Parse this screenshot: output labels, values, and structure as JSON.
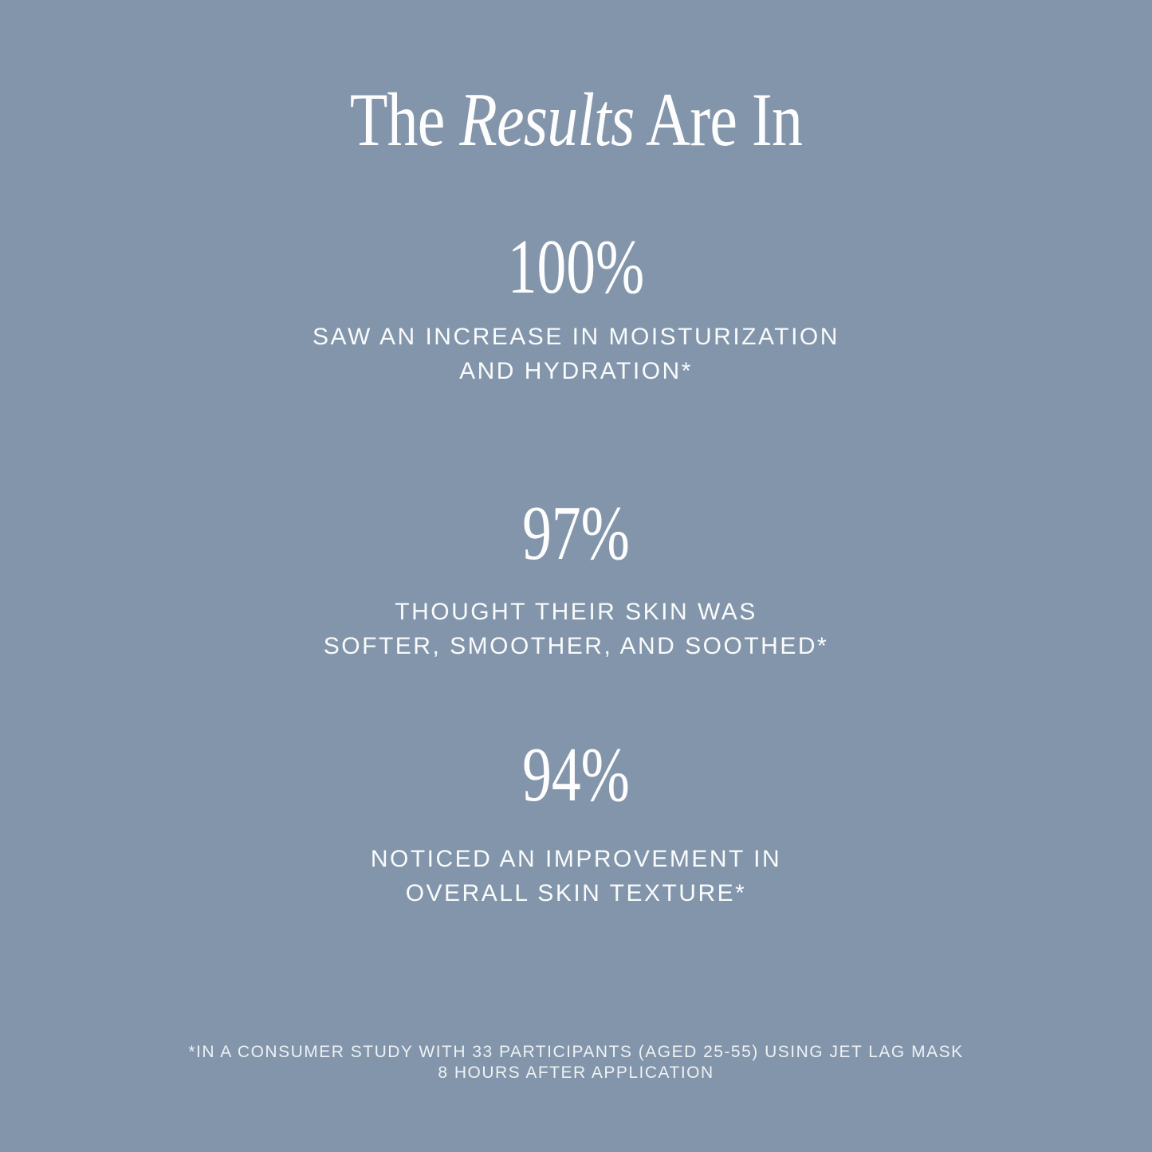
{
  "theme": {
    "background_color": "#8295aa",
    "text_color": "#fdfdfe"
  },
  "title": {
    "prefix": "The ",
    "emphasis": "Results",
    "suffix": " Are In"
  },
  "stats": [
    {
      "value": "100%",
      "lines": [
        "SAW AN INCREASE IN MOISTURIZATION",
        "AND HYDRATION*"
      ]
    },
    {
      "value": "97%",
      "lines": [
        "THOUGHT THEIR SKIN WAS",
        "SOFTER, SMOOTHER, AND SOOTHED*"
      ]
    },
    {
      "value": "94%",
      "lines": [
        "NOTICED AN IMPROVEMENT IN",
        "OVERALL SKIN TEXTURE*"
      ]
    }
  ],
  "footnote": {
    "lines": [
      "*IN A CONSUMER STUDY WITH 33 PARTICIPANTS (AGED 25-55) USING JET LAG MASK",
      "8 HOURS AFTER APPLICATION"
    ]
  }
}
